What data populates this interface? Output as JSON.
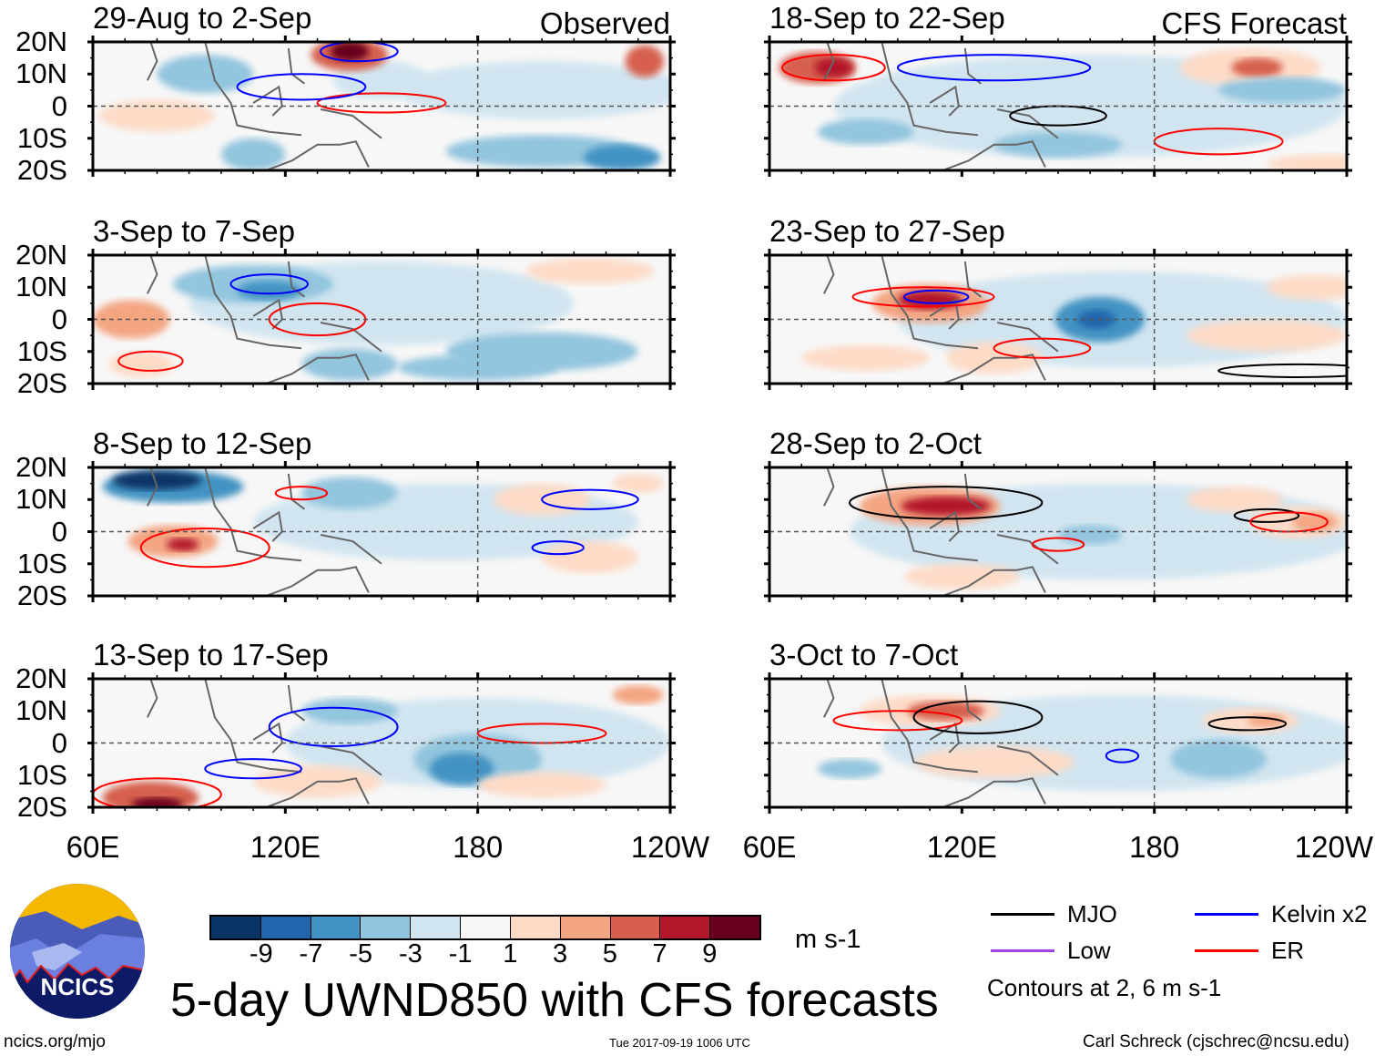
{
  "figure": {
    "title": "5-day UWND850 with CFS forecasts",
    "units": "m s-1",
    "site": "ncics.org/mjo",
    "timestamp": "Tue 2017-09-19 1006 UTC",
    "author": "Carl Schreck (cjschrec@ncsu.edu)",
    "logo_text": "NCICS"
  },
  "columns": [
    {
      "label": "Observed"
    },
    {
      "label": "CFS Forecast"
    }
  ],
  "lat_labels": [
    "20N",
    "10N",
    "0",
    "10S",
    "20S"
  ],
  "lon_labels": [
    "60E",
    "120E",
    "180",
    "120W"
  ],
  "colorbar": {
    "colors": [
      "#0b3466",
      "#2166ac",
      "#4393c3",
      "#92c5de",
      "#d1e5f0",
      "#f7f7f7",
      "#fddbc7",
      "#f4a582",
      "#d6604d",
      "#b2182b",
      "#67001f"
    ],
    "ticks": [
      "-9",
      "-7",
      "-5",
      "-3",
      "-1",
      "1",
      "3",
      "5",
      "7",
      "9"
    ]
  },
  "legend": {
    "items": [
      {
        "label": "MJO",
        "color": "#000000"
      },
      {
        "label": "Kelvin x2",
        "color": "#0000ff"
      },
      {
        "label": "Low",
        "color": "#a040e0"
      },
      {
        "label": "ER",
        "color": "#ff0000"
      }
    ],
    "note": "Contours at 2, 6 m s-1"
  },
  "chart_data": {
    "type": "heatmap",
    "variable": "850-hPa zonal wind anomaly",
    "units": "m s-1",
    "xlim": [
      "60E",
      "120W"
    ],
    "ylim": [
      "20S",
      "20N"
    ],
    "panels": [
      {
        "title": "29-Aug to 2-Sep",
        "source": "Observed"
      },
      {
        "title": "3-Sep to 7-Sep",
        "source": "Observed"
      },
      {
        "title": "8-Sep to 12-Sep",
        "source": "Observed"
      },
      {
        "title": "13-Sep to 17-Sep",
        "source": "Observed"
      },
      {
        "title": "18-Sep to 22-Sep",
        "source": "CFS Forecast"
      },
      {
        "title": "23-Sep to 27-Sep",
        "source": "CFS Forecast"
      },
      {
        "title": "28-Sep to 2-Oct",
        "source": "CFS Forecast"
      },
      {
        "title": "3-Oct to 7-Oct",
        "source": "CFS Forecast"
      }
    ]
  }
}
